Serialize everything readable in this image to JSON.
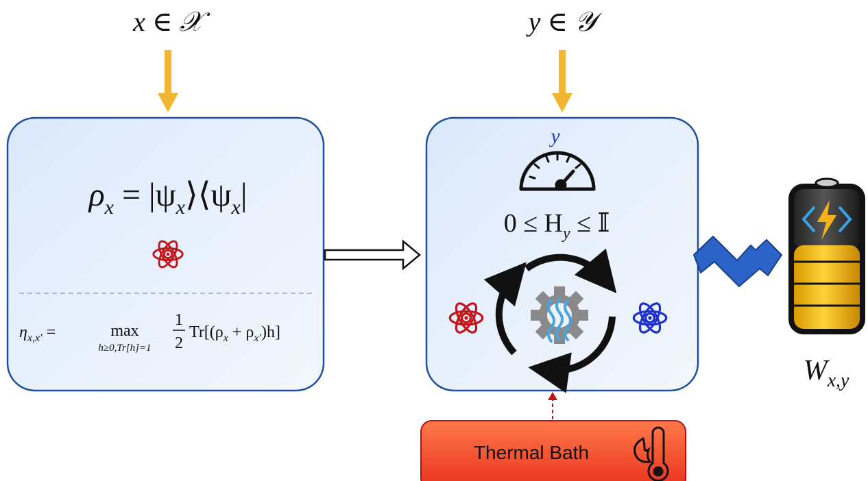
{
  "inputs": {
    "state_label": "x ∈ 𝒳",
    "measurement_label": "y ∈ 𝒴"
  },
  "state_box": {
    "formula": [
      "ρ",
      "x",
      " = |ψ",
      "x",
      "⟩⟨ψ",
      "x",
      "|"
    ],
    "distinguishability": [
      "η",
      "x,x′",
      " = ",
      "max",
      "h≥0,Tr[h]=1",
      "1",
      "2",
      "Tr[(ρ",
      "x",
      " + ρ",
      "x′",
      ")h]"
    ]
  },
  "measurement_box": {
    "setting": "y",
    "constraint": [
      "0 ≤ H",
      "y",
      " ≤ 𝕀"
    ]
  },
  "bath": "Thermal Bath",
  "work": [
    "W",
    "x,y"
  ]
}
